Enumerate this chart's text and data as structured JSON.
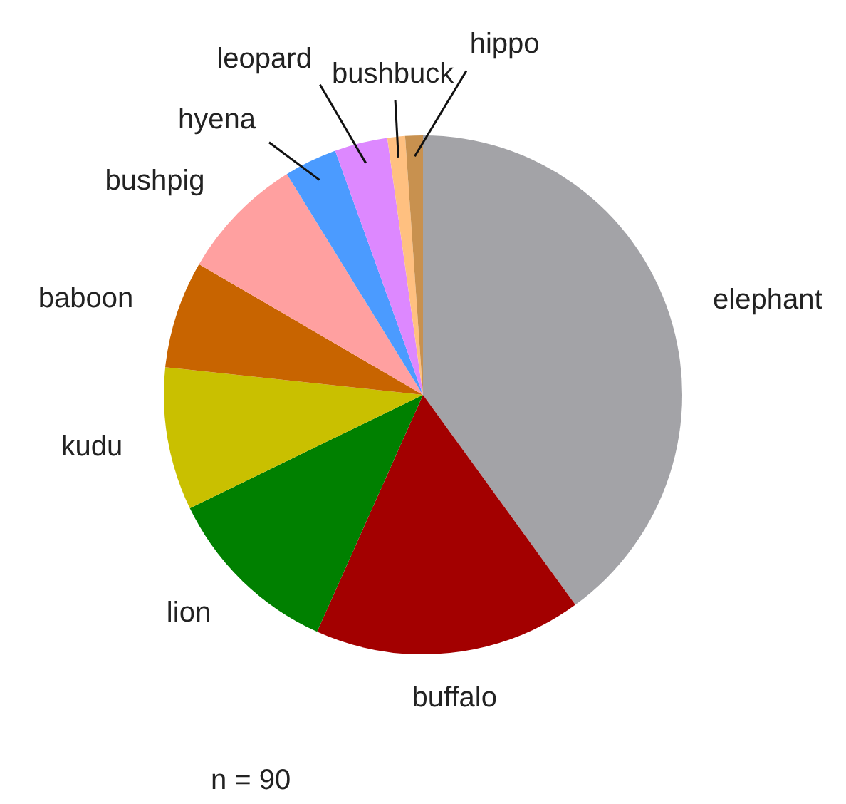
{
  "chart_data": {
    "type": "pie",
    "categories": [
      "elephant",
      "buffalo",
      "lion",
      "kudu",
      "baboon",
      "bushpig",
      "hyena",
      "leopard",
      "bushbuck",
      "hippo"
    ],
    "values": [
      40.0,
      16.7,
      11.1,
      8.9,
      6.7,
      7.8,
      3.3,
      3.3,
      1.1,
      1.1
    ],
    "colors": [
      "#a3a3a7",
      "#a30000",
      "#008000",
      "#c9c000",
      "#c86400",
      "#ffa0a0",
      "#4b9bff",
      "#dd88ff",
      "#ffc080",
      "#c8914f"
    ],
    "legend": false,
    "annotations": [
      "n = 90"
    ]
  }
}
